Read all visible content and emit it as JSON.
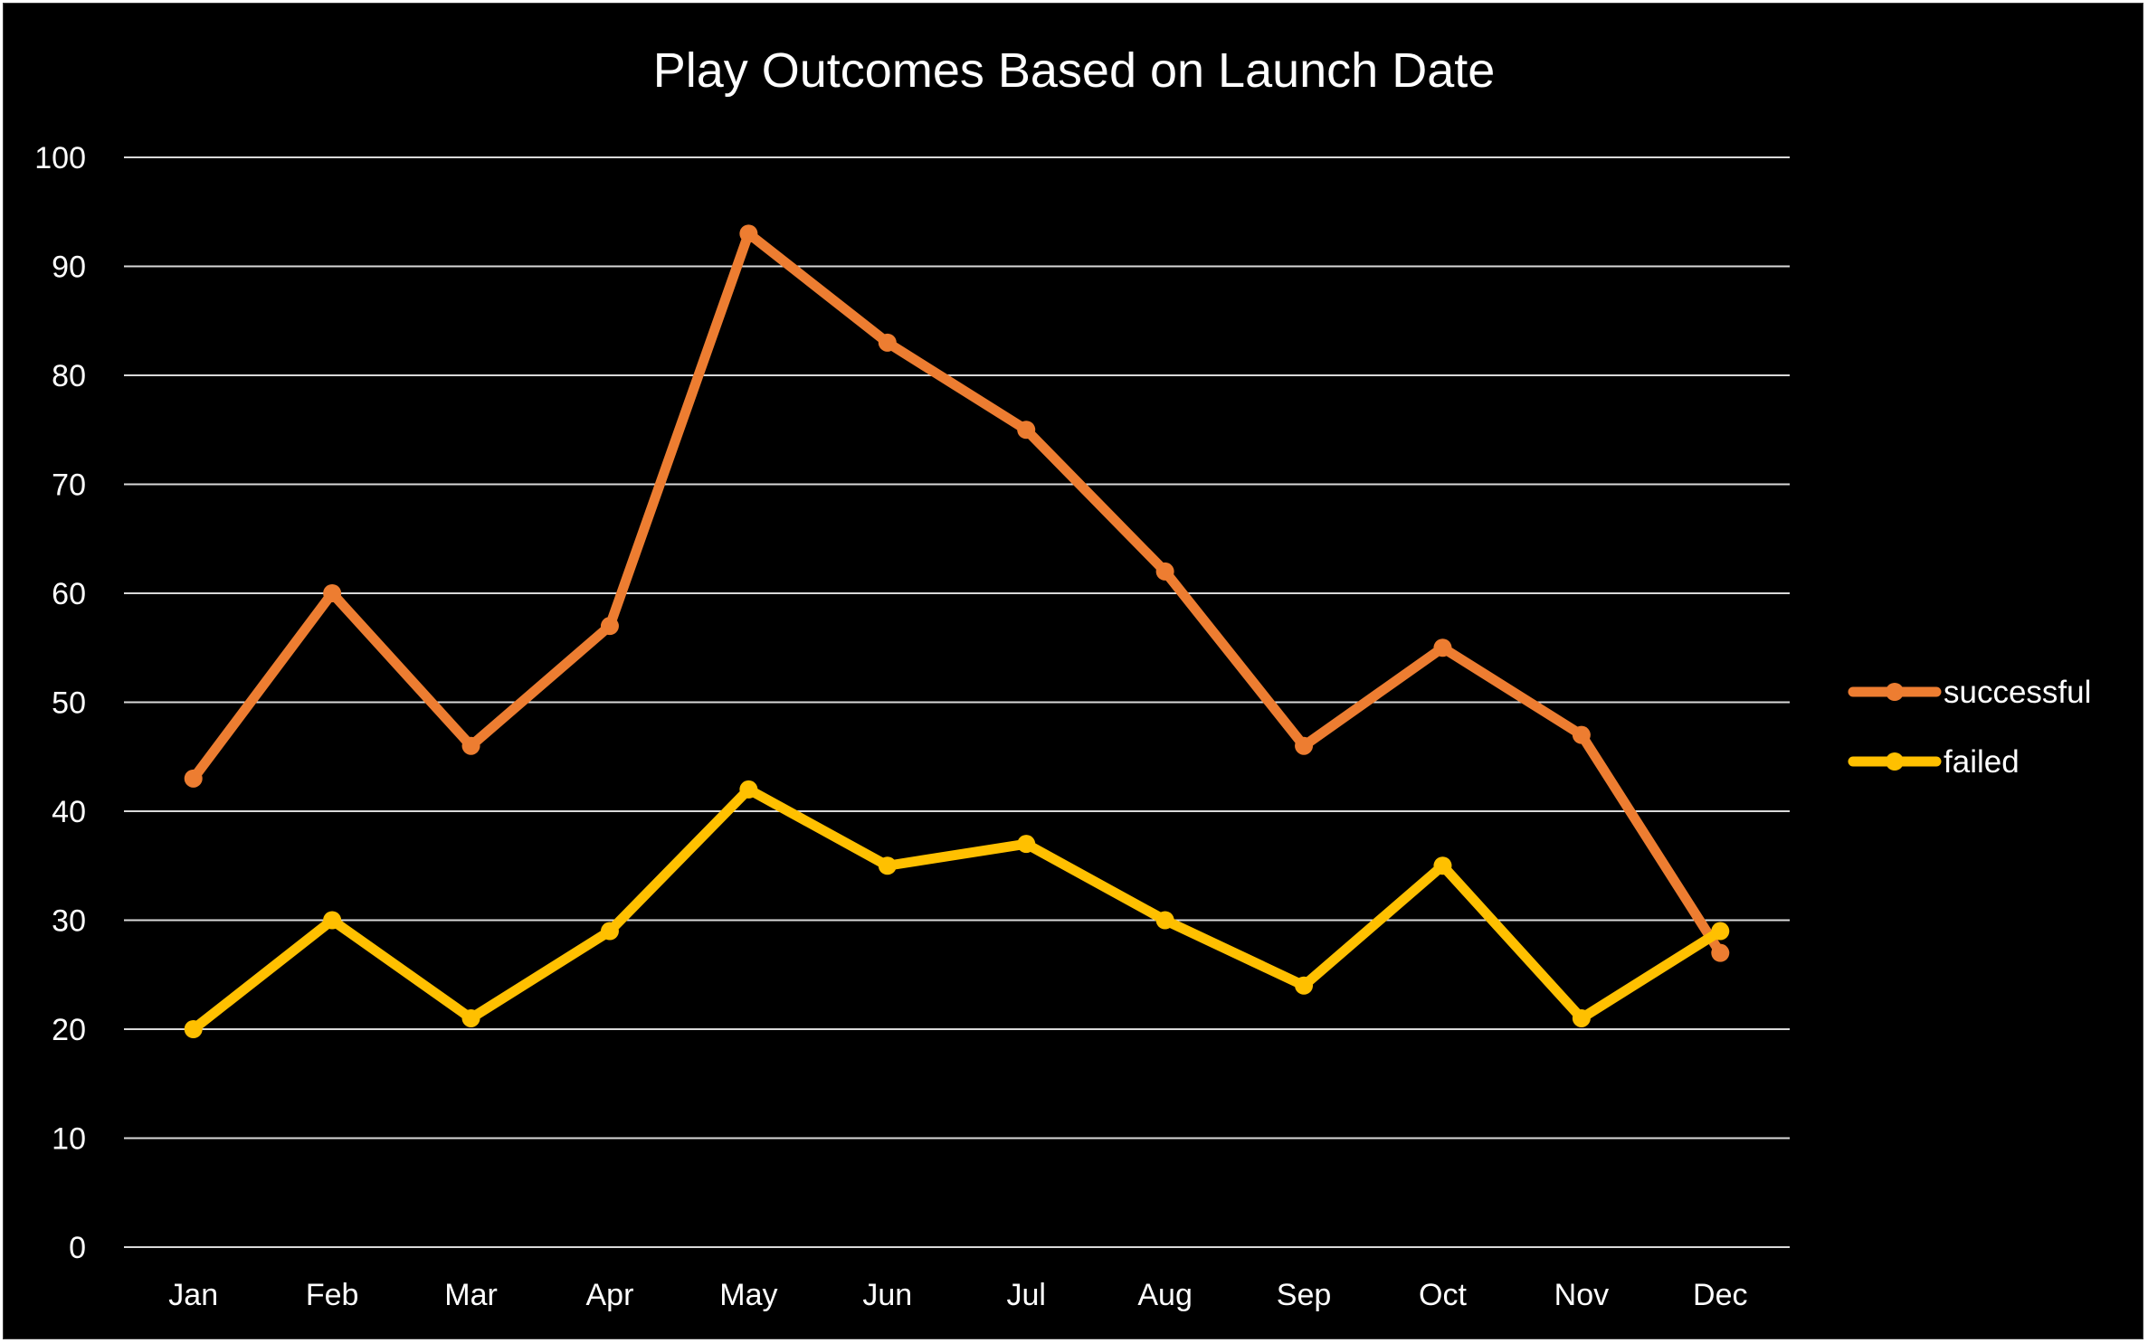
{
  "chart_data": {
    "type": "line",
    "title": "Play Outcomes Based on Launch Date",
    "xlabel": "",
    "ylabel": "",
    "categories": [
      "Jan",
      "Feb",
      "Mar",
      "Apr",
      "May",
      "Jun",
      "Jul",
      "Aug",
      "Sep",
      "Oct",
      "Nov",
      "Dec"
    ],
    "series": [
      {
        "name": "successful",
        "color": "#ed7d31",
        "values": [
          43,
          60,
          46,
          57,
          93,
          83,
          75,
          62,
          46,
          55,
          47,
          27
        ]
      },
      {
        "name": "failed",
        "color": "#ffc000",
        "values": [
          20,
          30,
          21,
          29,
          42,
          35,
          37,
          30,
          24,
          35,
          21,
          29
        ]
      }
    ],
    "ylim": [
      0,
      100
    ],
    "yticks": [
      0,
      10,
      20,
      30,
      40,
      50,
      60,
      70,
      80,
      90,
      100
    ],
    "grid": true,
    "legend_position": "right",
    "background": "#000000",
    "text_color": "#ffffff",
    "grid_color": "#d9d9d9"
  }
}
